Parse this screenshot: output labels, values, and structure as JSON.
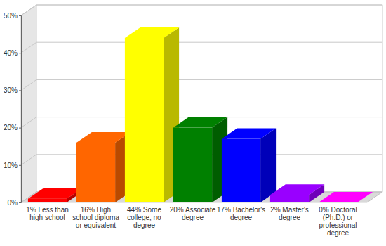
{
  "chart_data": {
    "type": "bar",
    "categories": [
      "1% Less than high school",
      "16% High school diploma or equivalent",
      "44% Some college, no degree",
      "20% Associate degree",
      "17% Bachelor's degree",
      "2% Master's degree",
      "0% Doctoral (Ph.D.) or professional degree"
    ],
    "values": [
      1,
      16,
      44,
      20,
      17,
      2,
      0
    ],
    "colors": [
      "#ff0000",
      "#ff6600",
      "#ffff00",
      "#008000",
      "#0000ff",
      "#9900ff",
      "#ff00ff"
    ],
    "ylim": [
      0,
      50
    ],
    "yticks": [
      {
        "value": 0,
        "label": "0%"
      },
      {
        "value": 10,
        "label": "10%"
      },
      {
        "value": 20,
        "label": "20%"
      },
      {
        "value": 30,
        "label": "30%"
      },
      {
        "value": 40,
        "label": "40%"
      },
      {
        "value": 50,
        "label": "50%"
      }
    ],
    "grid": true
  }
}
